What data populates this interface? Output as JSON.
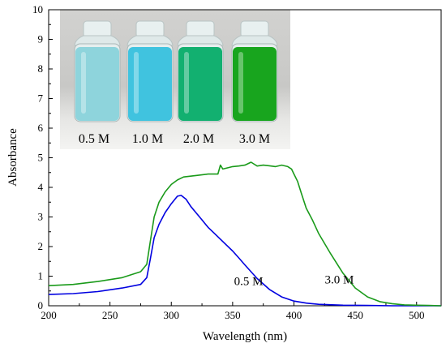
{
  "chart_data": {
    "type": "line",
    "xlabel": "Wavelength (nm)",
    "ylabel": "Absorbance",
    "xlim": [
      200,
      520
    ],
    "ylim": [
      0,
      10
    ],
    "xticks": [
      200,
      250,
      300,
      350,
      400,
      450,
      500
    ],
    "yticks": [
      0,
      1,
      2,
      3,
      4,
      5,
      6,
      7,
      8,
      9,
      10
    ],
    "grid": false,
    "series": [
      {
        "name": "0.5 M",
        "color": "#0000e0",
        "x": [
          200,
          220,
          240,
          260,
          275,
          280,
          283,
          286,
          290,
          295,
          300,
          305,
          308,
          312,
          316,
          320,
          325,
          330,
          335,
          340,
          345,
          350,
          355,
          360,
          370,
          380,
          390,
          400,
          410,
          420,
          440,
          460,
          480,
          500,
          520
        ],
        "y": [
          0.38,
          0.41,
          0.48,
          0.6,
          0.72,
          0.95,
          1.6,
          2.3,
          2.75,
          3.15,
          3.45,
          3.7,
          3.73,
          3.6,
          3.35,
          3.15,
          2.9,
          2.65,
          2.45,
          2.25,
          2.05,
          1.85,
          1.62,
          1.38,
          0.92,
          0.55,
          0.3,
          0.16,
          0.09,
          0.05,
          0.02,
          0.01,
          0.0,
          0.0,
          0.0
        ]
      },
      {
        "name": "3.0 M",
        "color": "#1a9a1a",
        "x": [
          200,
          220,
          240,
          260,
          275,
          280,
          283,
          286,
          290,
          295,
          300,
          305,
          310,
          320,
          330,
          338,
          340,
          342,
          350,
          355,
          360,
          365,
          370,
          375,
          380,
          385,
          390,
          395,
          398,
          400,
          403,
          406,
          410,
          415,
          420,
          430,
          440,
          450,
          460,
          470,
          480,
          490,
          500,
          510,
          520
        ],
        "y": [
          0.68,
          0.72,
          0.82,
          0.95,
          1.15,
          1.4,
          2.2,
          3.0,
          3.5,
          3.85,
          4.1,
          4.25,
          4.35,
          4.4,
          4.45,
          4.45,
          4.75,
          4.62,
          4.7,
          4.72,
          4.75,
          4.85,
          4.72,
          4.75,
          4.73,
          4.7,
          4.75,
          4.7,
          4.62,
          4.45,
          4.2,
          3.8,
          3.3,
          2.9,
          2.45,
          1.75,
          1.1,
          0.6,
          0.3,
          0.14,
          0.07,
          0.03,
          0.02,
          0.01,
          0.0
        ]
      }
    ],
    "annotations": [
      {
        "text": "0.5 M",
        "x": 363,
        "y": 0.7
      },
      {
        "text": "3.0 M",
        "x": 437,
        "y": 0.75
      }
    ],
    "inset": {
      "kind": "photo",
      "labels": [
        "0.5 M",
        "1.0 M",
        "2.0 M",
        "3.0 M"
      ],
      "liquid_colors": [
        "#8ed4dc",
        "#40c3df",
        "#12b070",
        "#18a51e"
      ]
    }
  }
}
